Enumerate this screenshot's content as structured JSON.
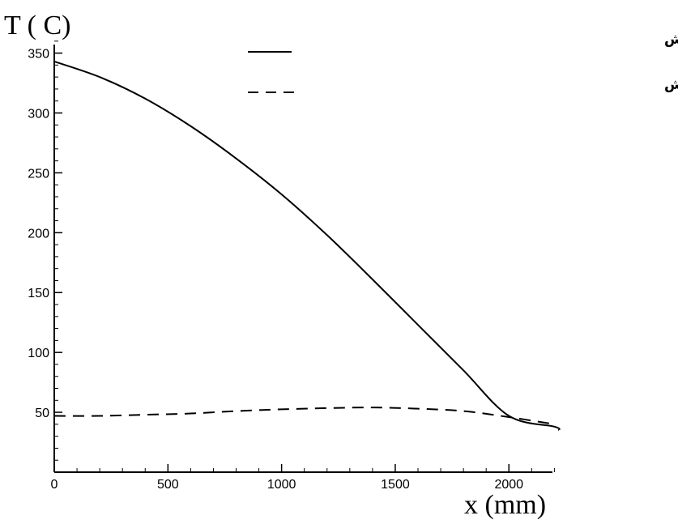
{
  "chart_data": {
    "type": "line",
    "title": "",
    "xlabel": "x (mm)",
    "ylabel": "T ( C)",
    "xlim": [
      0,
      2220
    ],
    "ylim": [
      0,
      370
    ],
    "xticks": [
      0,
      500,
      1000,
      1500,
      2000
    ],
    "xtick_labels": [
      "0",
      "500",
      "1000",
      "1500",
      "2000"
    ],
    "yticks": [
      50,
      100,
      150,
      200,
      250,
      300,
      350
    ],
    "ytick_labels": [
      "50",
      "100",
      "150",
      "200",
      "250",
      "300",
      "350"
    ],
    "grid": false,
    "legend_position": "top-right",
    "series": [
      {
        "name": "توزیع درجه حرارت متوسط هوا در طول پیش",
        "style": "solid",
        "color": "#000000",
        "x": [
          0,
          200,
          400,
          600,
          800,
          1000,
          1200,
          1400,
          1600,
          1800,
          2000,
          2200,
          2220
        ],
        "y": [
          343,
          330,
          312,
          289,
          262,
          232,
          198,
          161,
          123,
          85,
          47,
          38,
          35
        ]
      },
      {
        "name": "توزیع درجه حرارت نوسانی هوا در طول پیش",
        "style": "dashed",
        "color": "#000000",
        "x": [
          0,
          200,
          400,
          600,
          800,
          1000,
          1200,
          1400,
          1600,
          1800,
          2000,
          2200
        ],
        "y": [
          47,
          47,
          48,
          49,
          51,
          52.5,
          53.5,
          54,
          53,
          51,
          46,
          40
        ]
      }
    ]
  }
}
